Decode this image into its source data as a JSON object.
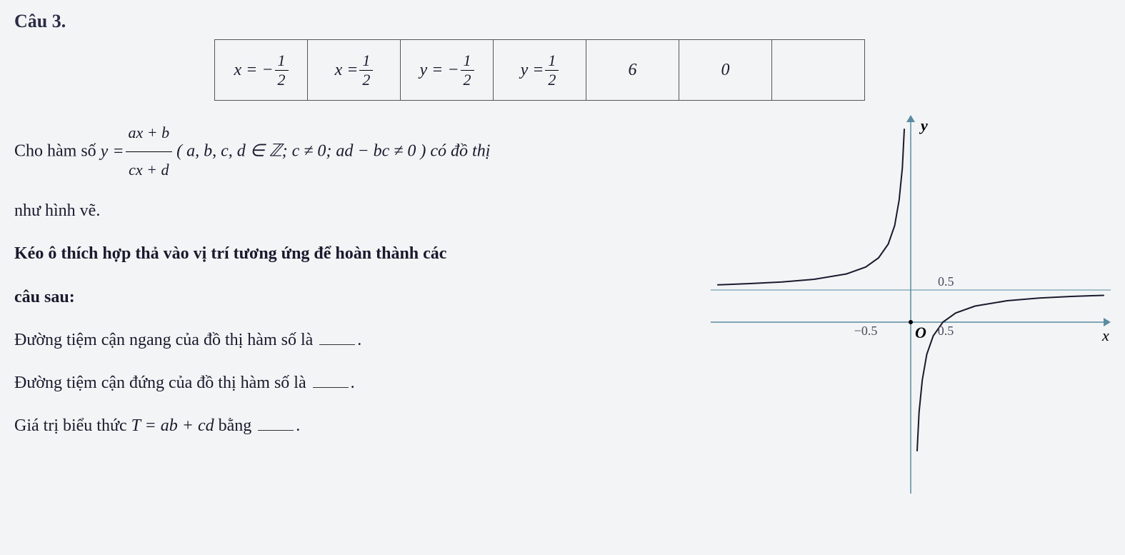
{
  "question": {
    "title": "Câu 3.",
    "table_cells": [
      {
        "prefix": "x = −",
        "num": "1",
        "den": "2"
      },
      {
        "prefix": "x = ",
        "num": "1",
        "den": "2"
      },
      {
        "prefix": "y = −",
        "num": "1",
        "den": "2"
      },
      {
        "prefix": "y = ",
        "num": "1",
        "den": "2"
      },
      {
        "plain": "6"
      },
      {
        "plain": "0"
      },
      {
        "plain": ""
      }
    ],
    "intro_part1": "Cho hàm số ",
    "intro_function_lhs": "y = ",
    "intro_function_num": "ax + b",
    "intro_function_den": "cx + d",
    "intro_conditions": " ( a, b, c, d ∈ ℤ; c ≠ 0; ad − bc ≠ 0 ) có đồ thị",
    "intro_part2": "như hình vẽ.",
    "instruction": "Kéo ô thích hợp thả vào vị trí tương ứng để hoàn thành các",
    "instruction2": "câu sau:",
    "line1": "Đường tiệm cận ngang của đồ thị hàm số là ",
    "line2": "Đường tiệm cận đứng của đồ thị hàm số là ",
    "line3_part1": "Giá trị biểu thức ",
    "line3_expr": "T = ab + cd",
    "line3_part2": " bằng "
  },
  "graph": {
    "type": "function-plot",
    "x_axis_label": "x",
    "y_axis_label": "y",
    "origin_label": "O",
    "x_ticks": [
      {
        "val": -0.5,
        "label": "−0.5"
      },
      {
        "val": 0.5,
        "label": "0.5"
      }
    ],
    "y_ticks": [
      {
        "val": 0.5,
        "label": "0.5"
      }
    ],
    "vertical_asymptote_x": 0,
    "horizontal_asymptote_y": 0.5,
    "xlim": [
      -3,
      3
    ],
    "ylim": [
      -3,
      3
    ],
    "axis_color": "#5a8ba0",
    "curve_color": "#1a1a2e",
    "curve_width": 2,
    "asymptote_color": "#5a8ba0",
    "asymptote_width": 1,
    "background_color": "#f3f4f6",
    "label_fontsize": 18,
    "axis_label_fontsize": 22,
    "branches": [
      {
        "name": "left",
        "points": [
          [
            -3,
            0.58
          ],
          [
            -2.5,
            0.6
          ],
          [
            -2,
            0.625
          ],
          [
            -1.5,
            0.667
          ],
          [
            -1.0,
            0.75
          ],
          [
            -0.7,
            0.857
          ],
          [
            -0.5,
            1.0
          ],
          [
            -0.35,
            1.214
          ],
          [
            -0.25,
            1.5
          ],
          [
            -0.18,
            1.9
          ],
          [
            -0.13,
            2.4
          ],
          [
            -0.1,
            3.0
          ]
        ]
      },
      {
        "name": "right",
        "points": [
          [
            0.1,
            -2.0
          ],
          [
            0.13,
            -1.4
          ],
          [
            0.18,
            -0.9
          ],
          [
            0.25,
            -0.5
          ],
          [
            0.35,
            -0.214
          ],
          [
            0.5,
            0.0
          ],
          [
            0.7,
            0.143
          ],
          [
            1.0,
            0.25
          ],
          [
            1.5,
            0.333
          ],
          [
            2.0,
            0.375
          ],
          [
            2.5,
            0.4
          ],
          [
            3.0,
            0.417
          ]
        ]
      }
    ]
  }
}
